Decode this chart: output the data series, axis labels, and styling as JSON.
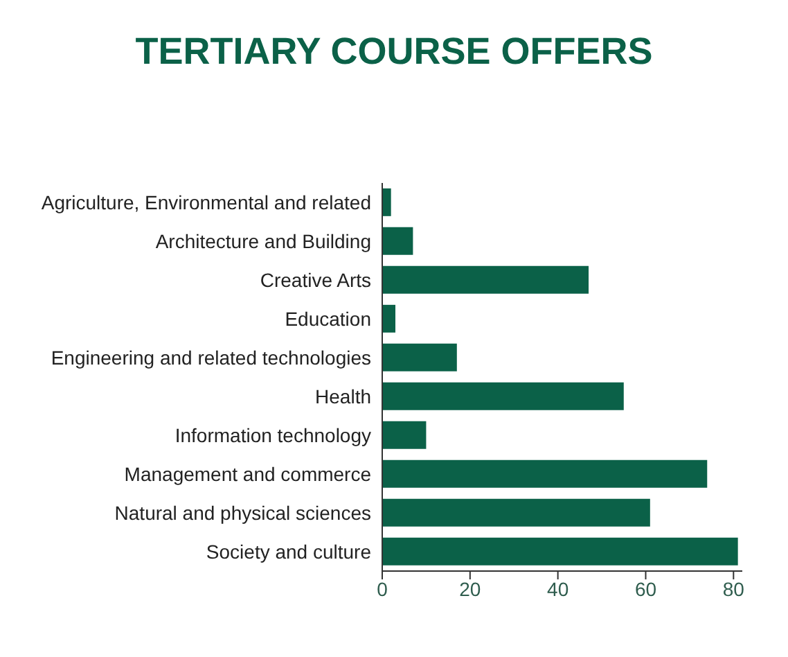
{
  "chart_data": {
    "type": "bar",
    "title": "TERTIARY COURSE OFFERS",
    "orientation": "horizontal",
    "categories": [
      "Agriculture, Environmental and related",
      "Architecture and Building",
      "Creative Arts",
      "Education",
      "Engineering and related technologies",
      "Health",
      "Information technology",
      "Management and commerce",
      "Natural and physical sciences",
      "Society and culture"
    ],
    "values": [
      2,
      7,
      47,
      3,
      17,
      55,
      10,
      74,
      61,
      81
    ],
    "color": "#0b6148",
    "xlim": [
      0,
      82
    ],
    "xticks": [
      0,
      20,
      40,
      60,
      80
    ]
  }
}
